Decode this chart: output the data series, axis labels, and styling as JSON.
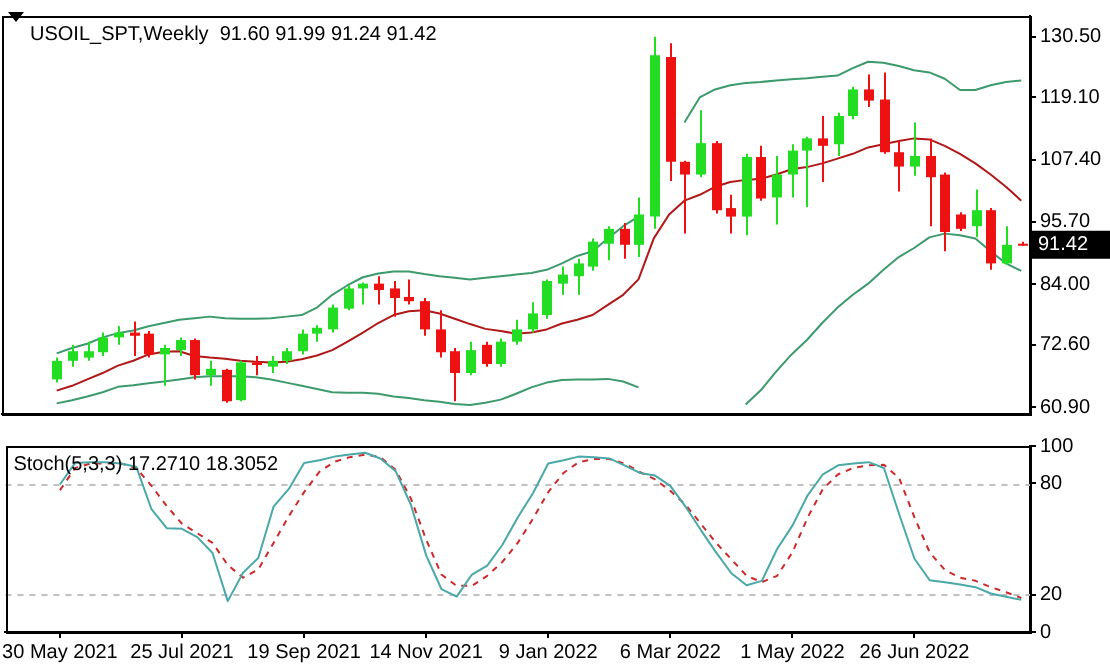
{
  "chart_data": [
    {
      "type": "candlestick",
      "title": "USOIL_SPT,Weekly  91.60 91.99 91.24 91.42",
      "x": [
        "2021-05-30",
        "2021-06-06",
        "2021-06-13",
        "2021-06-20",
        "2021-06-27",
        "2021-07-04",
        "2021-07-11",
        "2021-07-18",
        "2021-07-25",
        "2021-08-01",
        "2021-08-08",
        "2021-08-15",
        "2021-08-22",
        "2021-08-29",
        "2021-09-05",
        "2021-09-12",
        "2021-09-19",
        "2021-09-26",
        "2021-10-03",
        "2021-10-10",
        "2021-10-17",
        "2021-10-24",
        "2021-10-31",
        "2021-11-07",
        "2021-11-14",
        "2021-11-21",
        "2021-11-28",
        "2021-12-05",
        "2021-12-12",
        "2021-12-19",
        "2021-12-26",
        "2022-01-02",
        "2022-01-09",
        "2022-01-16",
        "2022-01-23",
        "2022-01-30",
        "2022-02-06",
        "2022-02-13",
        "2022-02-20",
        "2022-02-27",
        "2022-03-06",
        "2022-03-13",
        "2022-03-20",
        "2022-03-27",
        "2022-04-03",
        "2022-04-10",
        "2022-04-17",
        "2022-04-24",
        "2022-05-01",
        "2022-05-08",
        "2022-05-15",
        "2022-05-22",
        "2022-05-29",
        "2022-06-05",
        "2022-06-12",
        "2022-06-19",
        "2022-06-26",
        "2022-07-03",
        "2022-07-10",
        "2022-07-17",
        "2022-07-24",
        "2022-07-31",
        "2022-08-07",
        "2022-08-14"
      ],
      "xlim": [
        "2021-05-05",
        "2022-08-18"
      ],
      "ohlc": [
        [
          66.1,
          70.2,
          65.5,
          69.6
        ],
        [
          69.6,
          72.6,
          68.5,
          71.4
        ],
        [
          70.2,
          73.2,
          69.6,
          71.4
        ],
        [
          71.2,
          74.9,
          70.5,
          74.0
        ],
        [
          74.0,
          76.1,
          72.6,
          74.9
        ],
        [
          74.9,
          77.0,
          70.5,
          74.3
        ],
        [
          74.7,
          75.2,
          70.2,
          70.8
        ],
        [
          70.8,
          72.6,
          64.9,
          72.0
        ],
        [
          71.6,
          74.0,
          70.5,
          73.5
        ],
        [
          73.5,
          73.8,
          66.1,
          66.9
        ],
        [
          66.9,
          69.6,
          64.9,
          68.1
        ],
        [
          67.9,
          68.1,
          61.7,
          62.0
        ],
        [
          62.2,
          69.6,
          62.0,
          69.3
        ],
        [
          69.3,
          70.5,
          66.9,
          68.8
        ],
        [
          68.5,
          70.5,
          67.3,
          69.6
        ],
        [
          69.6,
          72.0,
          69.0,
          71.4
        ],
        [
          71.4,
          75.5,
          70.8,
          74.7
        ],
        [
          74.7,
          76.3,
          73.2,
          75.8
        ],
        [
          75.5,
          80.2,
          74.9,
          79.6
        ],
        [
          79.4,
          83.8,
          79.1,
          83.2
        ],
        [
          83.2,
          84.3,
          80.2,
          84.1
        ],
        [
          84.1,
          85.5,
          80.2,
          82.9
        ],
        [
          83.2,
          84.6,
          77.9,
          81.4
        ],
        [
          81.6,
          84.9,
          80.2,
          80.8
        ],
        [
          80.8,
          81.4,
          74.3,
          75.5
        ],
        [
          75.5,
          79.1,
          70.2,
          71.2
        ],
        [
          71.4,
          72.0,
          62.0,
          67.3
        ],
        [
          67.3,
          73.2,
          66.9,
          71.6
        ],
        [
          72.6,
          73.2,
          68.5,
          69.0
        ],
        [
          69.0,
          73.8,
          68.5,
          73.2
        ],
        [
          73.2,
          77.3,
          72.6,
          75.5
        ],
        [
          75.5,
          80.6,
          74.9,
          78.5
        ],
        [
          78.2,
          84.9,
          77.5,
          84.6
        ],
        [
          84.1,
          87.3,
          82.0,
          85.8
        ],
        [
          85.5,
          88.8,
          82.0,
          87.9
        ],
        [
          87.3,
          92.6,
          86.5,
          92.0
        ],
        [
          91.6,
          94.9,
          88.5,
          94.4
        ],
        [
          94.4,
          95.5,
          88.8,
          91.4
        ],
        [
          91.4,
          100.3,
          89.1,
          97.1
        ],
        [
          96.7,
          130.5,
          94.4,
          127.0
        ],
        [
          126.7,
          129.3,
          103.4,
          107.0
        ],
        [
          107.0,
          107.2,
          93.5,
          104.6
        ],
        [
          104.6,
          116.7,
          104.1,
          110.5
        ],
        [
          110.5,
          110.9,
          97.3,
          97.9
        ],
        [
          98.3,
          100.8,
          93.5,
          96.7
        ],
        [
          96.7,
          108.5,
          93.2,
          107.9
        ],
        [
          107.9,
          110.0,
          99.7,
          100.1
        ],
        [
          100.3,
          108.1,
          95.2,
          104.6
        ],
        [
          104.6,
          110.3,
          100.3,
          109.1
        ],
        [
          109.1,
          111.7,
          98.5,
          111.4
        ],
        [
          111.4,
          115.6,
          103.2,
          110.0
        ],
        [
          110.3,
          116.2,
          108.1,
          115.6
        ],
        [
          115.6,
          121.1,
          115.0,
          120.6
        ],
        [
          120.6,
          123.4,
          117.3,
          118.5
        ],
        [
          118.7,
          123.8,
          108.5,
          108.8
        ],
        [
          108.8,
          110.9,
          101.4,
          106.1
        ],
        [
          106.1,
          114.4,
          104.4,
          108.1
        ],
        [
          108.1,
          111.4,
          94.9,
          104.1
        ],
        [
          104.6,
          105.0,
          90.2,
          93.8
        ],
        [
          97.1,
          97.5,
          94.0,
          94.4
        ],
        [
          94.9,
          101.8,
          92.8,
          97.9
        ],
        [
          97.9,
          98.3,
          86.7,
          87.9
        ],
        [
          87.9,
          94.9,
          87.6,
          91.4
        ],
        [
          91.6,
          91.99,
          91.24,
          91.42
        ]
      ],
      "colors": [
        "#22dd22",
        "#22dd22",
        "#22dd22",
        "#22dd22",
        "#22dd22",
        "#ee1111",
        "#ee1111",
        "#22dd22",
        "#22dd22",
        "#ee1111",
        "#22dd22",
        "#ee1111",
        "#22dd22",
        "#ee1111",
        "#22dd22",
        "#22dd22",
        "#22dd22",
        "#22dd22",
        "#22dd22",
        "#22dd22",
        "#22dd22",
        "#ee1111",
        "#ee1111",
        "#ee1111",
        "#ee1111",
        "#ee1111",
        "#ee1111",
        "#22dd22",
        "#ee1111",
        "#22dd22",
        "#22dd22",
        "#22dd22",
        "#22dd22",
        "#22dd22",
        "#22dd22",
        "#22dd22",
        "#22dd22",
        "#ee1111",
        "#22dd22",
        "#22dd22",
        "#ee1111",
        "#ee1111",
        "#22dd22",
        "#ee1111",
        "#ee1111",
        "#22dd22",
        "#ee1111",
        "#22dd22",
        "#22dd22",
        "#22dd22",
        "#ee1111",
        "#22dd22",
        "#22dd22",
        "#ee1111",
        "#ee1111",
        "#ee1111",
        "#22dd22",
        "#ee1111",
        "#ee1111",
        "#ee1111",
        "#22dd22",
        "#ee1111",
        "#22dd22",
        "#ee1111"
      ],
      "series": [
        {
          "type": "line",
          "color": "#3c9a6c",
          "values": [
            71.0,
            72.0,
            72.8,
            74.0,
            74.8,
            75.3,
            76.1,
            76.7,
            77.3,
            77.6,
            77.9,
            77.6,
            77.5,
            77.5,
            77.6,
            77.9,
            78.2,
            79.6,
            82.0,
            83.8,
            85.3,
            86.0,
            86.4,
            86.4,
            85.9,
            85.5,
            85.2,
            84.9,
            85.2,
            85.5,
            85.8,
            86.1,
            86.7,
            87.9,
            89.3,
            90.2,
            92.6,
            94.9,
            96.7,
            null,
            null,
            114.4,
            119.1,
            120.6,
            121.4,
            121.8,
            122.0,
            122.3,
            122.5,
            122.7,
            123.0,
            123.2,
            124.6,
            125.8,
            125.6,
            125.0,
            124.2,
            123.8,
            122.6,
            120.5,
            120.5,
            121.4,
            122.0,
            122.3
          ]
        },
        {
          "type": "line",
          "color": "#b01818",
          "values": [
            64.0,
            64.9,
            66.1,
            67.3,
            68.7,
            69.6,
            70.8,
            71.3,
            71.4,
            70.5,
            70.2,
            70.0,
            69.6,
            69.4,
            69.3,
            69.4,
            69.9,
            70.6,
            71.6,
            73.2,
            74.9,
            76.7,
            78.2,
            78.9,
            79.1,
            78.5,
            77.5,
            76.5,
            75.6,
            75.2,
            74.7,
            74.9,
            75.5,
            76.6,
            77.3,
            78.2,
            80.1,
            82.0,
            84.9,
            92.6,
            97.1,
            99.7,
            100.8,
            102.3,
            103.2,
            103.6,
            103.8,
            104.6,
            105.6,
            106.0,
            106.7,
            107.6,
            108.5,
            109.7,
            110.3,
            110.9,
            111.4,
            111.2,
            110.0,
            108.5,
            106.7,
            104.6,
            102.3,
            99.7
          ]
        },
        {
          "type": "line",
          "color": "#3c9a6c",
          "values": [
            61.6,
            62.2,
            62.9,
            63.7,
            64.7,
            65.0,
            65.4,
            65.7,
            66.1,
            66.5,
            66.7,
            66.7,
            66.7,
            66.5,
            66.1,
            65.5,
            64.9,
            64.3,
            63.7,
            63.6,
            63.6,
            63.4,
            62.9,
            62.6,
            62.2,
            61.9,
            61.5,
            61.3,
            61.7,
            62.3,
            63.4,
            64.6,
            65.5,
            66.0,
            66.1,
            66.1,
            66.2,
            65.7,
            64.6,
            null,
            null,
            null,
            null,
            null,
            null,
            61.4,
            64.1,
            67.6,
            70.8,
            73.5,
            76.7,
            79.6,
            82.0,
            84.1,
            86.7,
            89.1,
            90.8,
            92.8,
            93.5,
            93.2,
            92.6,
            90.2,
            87.9,
            86.5
          ]
        }
      ],
      "ylim": [
        59.6,
        134.4
      ],
      "yticks": [
        {
          "value": 60.9,
          "label": "60.90"
        },
        {
          "value": 72.6,
          "label": "72.60"
        },
        {
          "value": 84,
          "label": "84.00"
        },
        {
          "value": 95.7,
          "label": "95.70"
        },
        {
          "value": 107.4,
          "label": "107.40"
        },
        {
          "value": 119.1,
          "label": "119.10"
        },
        {
          "value": 130.5,
          "label": "130.50"
        }
      ],
      "annotations": [
        "91.42"
      ],
      "tick_labels": "y"
    },
    {
      "type": "line",
      "title": "Stoch(5,3,3) 17.2710 18.3052",
      "x": [
        "2021-05-30",
        "2021-06-06",
        "2021-06-13",
        "2021-06-20",
        "2021-06-27",
        "2021-07-04",
        "2021-07-11",
        "2021-07-18",
        "2021-07-25",
        "2021-08-01",
        "2021-08-08",
        "2021-08-15",
        "2021-08-22",
        "2021-08-29",
        "2021-09-05",
        "2021-09-12",
        "2021-09-19",
        "2021-09-26",
        "2021-10-03",
        "2021-10-10",
        "2021-10-17",
        "2021-10-24",
        "2021-10-31",
        "2021-11-07",
        "2021-11-14",
        "2021-11-21",
        "2021-11-28",
        "2021-12-05",
        "2021-12-12",
        "2021-12-19",
        "2021-12-26",
        "2022-01-02",
        "2022-01-09",
        "2022-01-16",
        "2022-01-23",
        "2022-01-30",
        "2022-02-06",
        "2022-02-13",
        "2022-02-20",
        "2022-02-27",
        "2022-03-06",
        "2022-03-13",
        "2022-03-20",
        "2022-03-27",
        "2022-04-03",
        "2022-04-10",
        "2022-04-17",
        "2022-04-24",
        "2022-05-01",
        "2022-05-08",
        "2022-05-15",
        "2022-05-22",
        "2022-05-29",
        "2022-06-05",
        "2022-06-12",
        "2022-06-19",
        "2022-06-26",
        "2022-07-03",
        "2022-07-10",
        "2022-07-17",
        "2022-07-24",
        "2022-07-31",
        "2022-08-07",
        "2022-08-14"
      ],
      "xlim": [
        "2021-05-05",
        "2022-08-18"
      ],
      "xticks": [
        {
          "value": "2021-05-30",
          "label": "30 May 2021"
        },
        {
          "value": "2021-07-25",
          "label": "25 Jul 2021"
        },
        {
          "value": "2021-09-19",
          "label": "19 Sep 2021"
        },
        {
          "value": "2021-11-14",
          "label": "14 Nov 2021"
        },
        {
          "value": "2022-01-09",
          "label": "9 Jan 2022"
        },
        {
          "value": "2022-03-06",
          "label": "6 Mar 2022"
        },
        {
          "value": "2022-05-01",
          "label": "1 May 2022"
        },
        {
          "value": "2022-06-26",
          "label": "26 Jun 2022"
        }
      ],
      "series": [
        {
          "color": "#4aa8a8",
          "values": [
            79.3,
            90.9,
            91.3,
            91.3,
            90.6,
            88.9,
            66.0,
            55.8,
            55.5,
            51.0,
            42.5,
            16.6,
            31.9,
            39.8,
            67.4,
            76.9,
            90.9,
            92.3,
            94.3,
            95.4,
            96.4,
            93.3,
            86.5,
            68.4,
            41.2,
            23.1,
            19.0,
            30.9,
            35.7,
            46.9,
            61.6,
            74.6,
            90.6,
            92.3,
            94.3,
            94.0,
            93.3,
            89.6,
            85.5,
            84.1,
            78.6,
            67.4,
            54.8,
            42.8,
            31.6,
            25.1,
            27.5,
            44.6,
            57.2,
            73.5,
            84.8,
            89.6,
            90.6,
            91.3,
            88.2,
            63.3,
            39.4,
            27.8,
            26.8,
            25.5,
            24.1,
            20.7,
            19.0,
            17.27
          ]
        },
        {
          "color": "#cc2a2a",
          "line_style": "dashed",
          "values": [
            76.2,
            88.2,
            90.6,
            90.6,
            90.6,
            88.2,
            78.6,
            67.7,
            58.2,
            53.1,
            47.9,
            36.0,
            29.2,
            33.6,
            47.9,
            62.3,
            75.2,
            86.1,
            91.6,
            94.0,
            95.4,
            94.0,
            87.2,
            71.8,
            49.7,
            30.9,
            24.8,
            24.8,
            30.2,
            37.7,
            47.9,
            60.9,
            75.2,
            85.5,
            91.3,
            93.0,
            93.0,
            90.6,
            86.1,
            82.0,
            75.9,
            68.4,
            58.2,
            47.9,
            39.1,
            30.2,
            26.8,
            30.2,
            42.8,
            61.6,
            76.9,
            84.8,
            88.2,
            89.6,
            89.9,
            82.7,
            61.6,
            42.8,
            33.3,
            29.2,
            27.5,
            24.1,
            21.4,
            18.31
          ]
        }
      ],
      "ylim": [
        0,
        100
      ],
      "yticks": [
        0,
        20,
        80,
        100
      ],
      "ref_lines": [
        {
          "axis": "y",
          "value": 80,
          "color": "#c0c0c0",
          "line_style": "dashed"
        },
        {
          "axis": "y",
          "value": 20,
          "color": "#c0c0c0",
          "line_style": "dashed"
        }
      ]
    }
  ]
}
